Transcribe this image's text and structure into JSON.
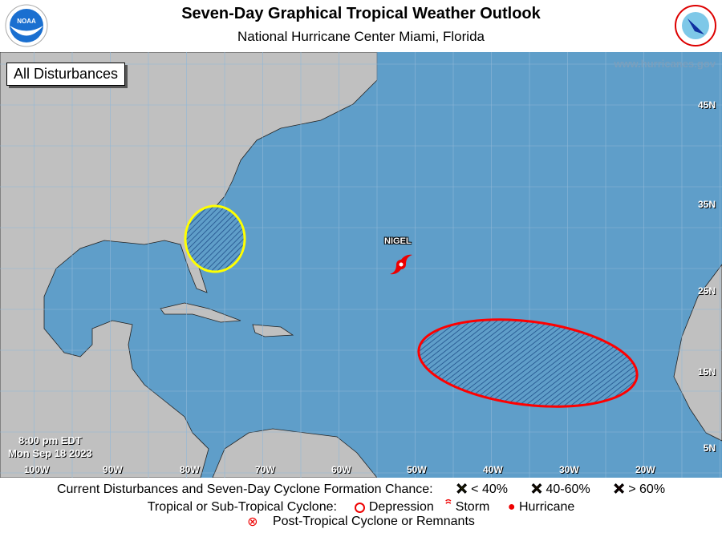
{
  "header": {
    "title": "Seven-Day Graphical Tropical Weather Outlook",
    "subtitle": "National Hurricane Center  Miami, Florida",
    "left_logo": "noaa-logo",
    "right_logo": "nws-logo"
  },
  "map": {
    "view_label": "All Disturbances",
    "website": "www.hurricanes.gov",
    "time": "8:00 pm EDT",
    "date": "Mon Sep 18 2023",
    "longitudes": [
      "100W",
      "90W",
      "80W",
      "70W",
      "60W",
      "50W",
      "40W",
      "30W",
      "20W"
    ],
    "latitudes": [
      "45N",
      "35N",
      "25N",
      "15N",
      "5N"
    ],
    "colors": {
      "ocean": "#5f9ec9",
      "land": "#c0c0c0",
      "low_chance": "#ffff00",
      "high_chance": "#ff0000"
    },
    "storms": [
      {
        "name": "NIGEL",
        "type": "Hurricane"
      }
    ],
    "disturbances": [
      {
        "chance": "< 40%",
        "color": "#ffff00",
        "location": "off Southeast US coast"
      },
      {
        "chance": "> 60%",
        "color": "#ff0000",
        "location": "central tropical Atlantic"
      }
    ]
  },
  "legend": {
    "row1_label": "Current Disturbances and Seven-Day Cyclone Formation Chance:",
    "low": "< 40%",
    "mid": "40-60%",
    "high": "> 60%",
    "row2_label": "Tropical or Sub-Tropical Cyclone:",
    "depression": "Depression",
    "storm": "Storm",
    "hurricane": "Hurricane",
    "row3_label": "Post-Tropical Cyclone or Remnants"
  }
}
